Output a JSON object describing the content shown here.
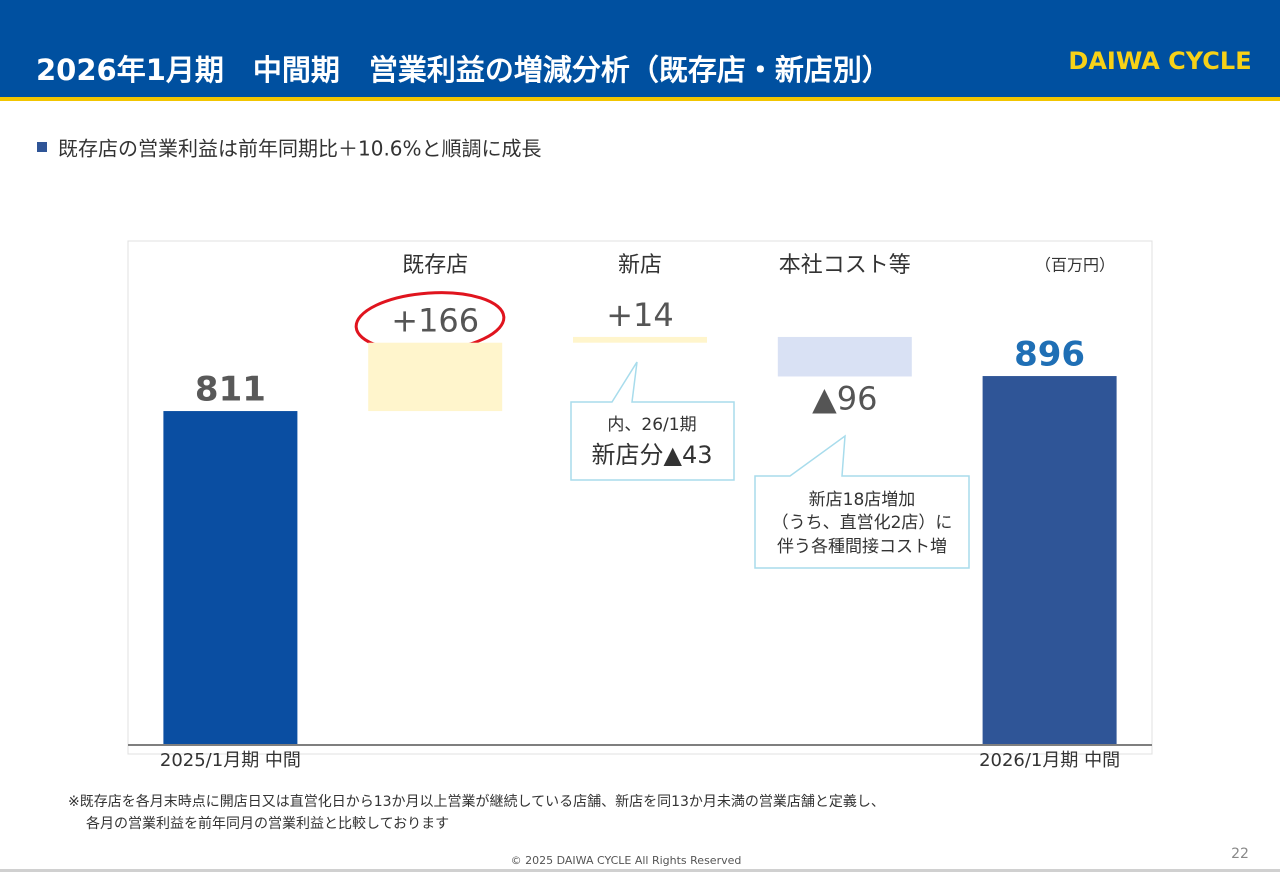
{
  "header": {
    "title": "2026年1月期　中間期　営業利益の増減分析（既存店・新店別）",
    "logo": "DAIWA CYCLE"
  },
  "bullet": "既存店の営業利益は前年同期比＋10.6%と順調に成長",
  "chart_data": {
    "type": "waterfall",
    "unit": "（百万円）",
    "categories": [
      "2025/1月期 中間",
      "既存店",
      "新店",
      "本社コスト等",
      "2026/1月期 中間"
    ],
    "values": [
      811,
      166,
      14,
      -96,
      896
    ],
    "value_labels": [
      "811",
      "+166",
      "+14",
      "▲96",
      "896"
    ],
    "totals": [
      true,
      false,
      false,
      false,
      true
    ],
    "colors": [
      "#0a4ea2",
      "#fff5cc",
      "#fff5cc",
      "#d9e1f4",
      "#2f5597"
    ],
    "ylim": [
      0,
      1224
    ],
    "annotations": [
      [
        "内、26/1期",
        "新店分▲43"
      ],
      [
        "新店18店増加",
        "（うち、直営化2店）に",
        "伴う各種間接コスト増"
      ]
    ]
  },
  "footnote": [
    "※既存店を各月末時点に開店日又は直営化日から13か月以上営業が継続している店舗、新店を同13か月未満の営業店舗と定義し、",
    "各月の営業利益を前年同月の営業利益と比較しております"
  ],
  "copyright": "© 2025 DAIWA CYCLE All Rights Reserved",
  "page": "22"
}
